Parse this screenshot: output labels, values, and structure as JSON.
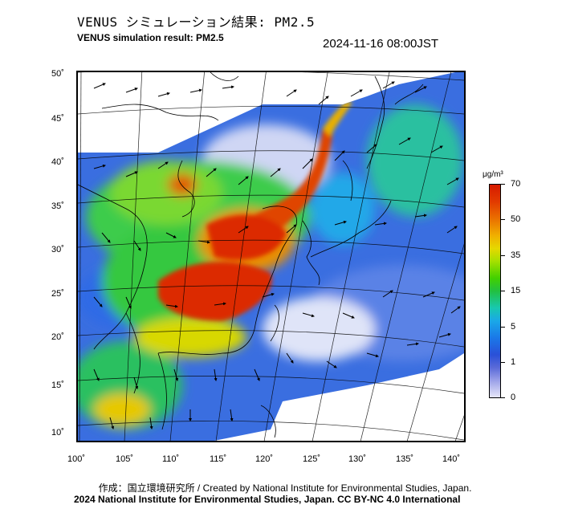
{
  "title_jp": "VENUS シミュレーション結果: PM2.5",
  "title_en": "VENUS simulation result: PM2.5",
  "timestamp": "2024-11-16 08:00JST",
  "lat_labels": [
    "50˚",
    "45˚",
    "40˚",
    "35˚",
    "30˚",
    "25˚",
    "20˚",
    "15˚",
    "10˚"
  ],
  "lon_labels": [
    "100˚",
    "105˚",
    "110˚",
    "115˚",
    "120˚",
    "125˚",
    "130˚",
    "135˚",
    "140˚"
  ],
  "colorbar": {
    "unit": "μg/m³",
    "labels": [
      "70",
      "50",
      "35",
      "15",
      "5",
      "1",
      "0"
    ]
  },
  "colors": {
    "low": "#e6e6f8",
    "blue": "#2a50d8",
    "cyan": "#18c8b0",
    "green": "#42d000",
    "yellow": "#e6d800",
    "orange": "#ea7000",
    "red": "#d61a00"
  },
  "footer": {
    "credit": "作成：国立環境研究所 / Created by National Institute for Environmental Studies, Japan.",
    "license": "2024 National Institute for Environmental Studies, Japan. CC BY-NC 4.0 International"
  }
}
